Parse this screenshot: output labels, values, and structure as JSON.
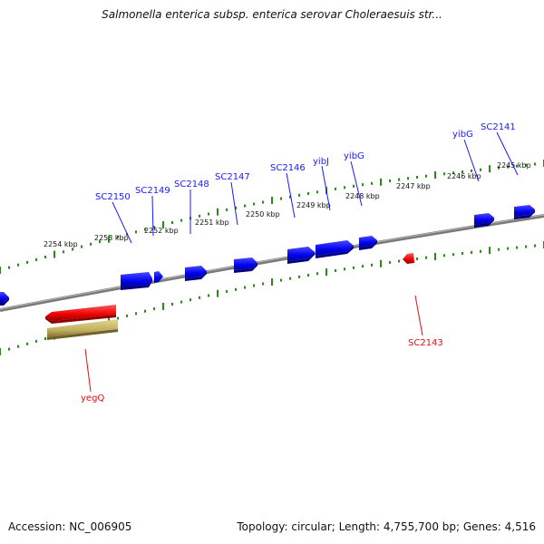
{
  "title": "Salmonella enterica subsp. enterica serovar Choleraesuis str...",
  "footer": {
    "accession": "Accession: NC_006905",
    "summary": "Topology: circular; Length: 4,755,700 bp; Genes: 4,516"
  },
  "colors": {
    "forward_gene": "#1a1aff",
    "reverse_gene": "#ff1010",
    "tick": "#2a8a1a",
    "backbone": "#808080",
    "selected_gene": "#c8c070"
  },
  "scale_labels": [
    "2254 kbp",
    "2253 kbp",
    "2252 kbp",
    "2251 kbp",
    "2250 kbp",
    "2249 kbp",
    "2248 kbp",
    "2247 kbp",
    "2246 kbp",
    "2245 kbp"
  ],
  "forward_gene_labels": [
    "SC2150",
    "SC2149",
    "SC2148",
    "SC2147",
    "SC2146",
    "yibJ",
    "yibG",
    "yibG",
    "SC2141"
  ],
  "reverse_gene_labels": [
    "yegQ",
    "SC2143"
  ]
}
